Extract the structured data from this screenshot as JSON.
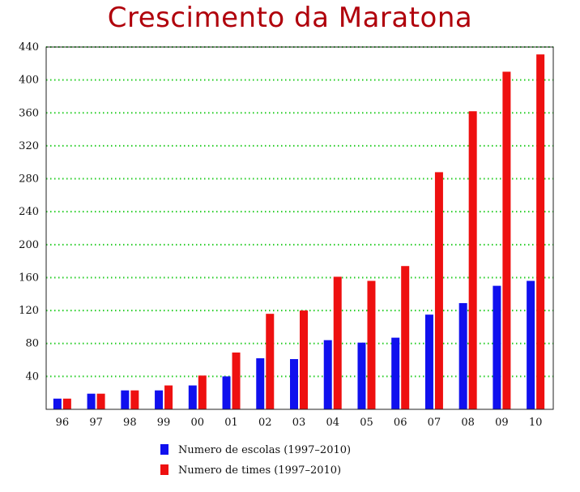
{
  "chart_data": {
    "type": "bar",
    "title": "Crescimento da Maratona",
    "categories": [
      "96",
      "97",
      "98",
      "99",
      "00",
      "01",
      "02",
      "03",
      "04",
      "05",
      "06",
      "07",
      "08",
      "09",
      "10"
    ],
    "series": [
      {
        "name": "Numero de escolas (1997–2010)",
        "color": "#1010ee",
        "values": [
          13,
          19,
          23,
          23,
          29,
          40,
          62,
          61,
          84,
          81,
          87,
          115,
          129,
          150,
          156
        ]
      },
      {
        "name": "Numero de times (1997–2010)",
        "color": "#ee1010",
        "values": [
          13,
          19,
          23,
          29,
          41,
          69,
          116,
          120,
          161,
          156,
          174,
          288,
          362,
          410,
          431
        ]
      }
    ],
    "ylim": [
      0,
      440
    ],
    "yticks": [
      40,
      80,
      120,
      160,
      200,
      240,
      280,
      320,
      360,
      400,
      440
    ],
    "grid": true,
    "grid_style": "dotted",
    "grid_color": "#22cc22",
    "legend_position": "bottom"
  }
}
